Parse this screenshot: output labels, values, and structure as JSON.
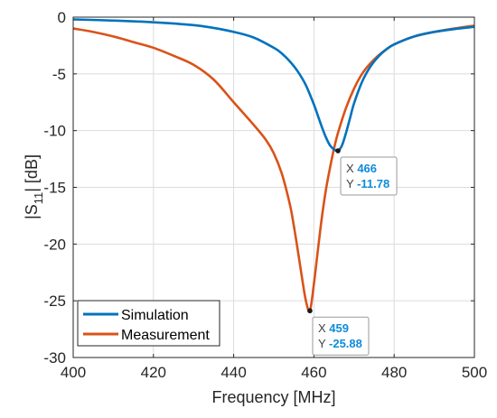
{
  "chart_data": {
    "type": "line",
    "xlabel": "Frequency [MHz]",
    "ylabel_main": "|S",
    "ylabel_sub": "11",
    "ylabel_tail": "| [dB]",
    "xlim": [
      400,
      500
    ],
    "ylim": [
      -30,
      0
    ],
    "xticks": [
      400,
      420,
      440,
      460,
      480,
      500
    ],
    "yticks": [
      0,
      -5,
      -10,
      -15,
      -20,
      -25,
      -30
    ],
    "grid": true,
    "legend_position": "bottom-left",
    "series": [
      {
        "name": "Simulation",
        "color": "#0072BD",
        "x": [
          400,
          410,
          420,
          430,
          435,
          440,
          445,
          450,
          452,
          454,
          456,
          458,
          460,
          461,
          462,
          463,
          464,
          465,
          466,
          467,
          468,
          469,
          470,
          472,
          474,
          476,
          478,
          480,
          485,
          490,
          495,
          500
        ],
        "y": [
          -0.2,
          -0.3,
          -0.45,
          -0.7,
          -0.95,
          -1.3,
          -1.8,
          -2.7,
          -3.2,
          -3.9,
          -4.8,
          -6.0,
          -7.7,
          -8.7,
          -9.7,
          -10.6,
          -11.3,
          -11.65,
          -11.78,
          -11.3,
          -10.2,
          -8.9,
          -7.6,
          -5.7,
          -4.4,
          -3.5,
          -2.85,
          -2.4,
          -1.7,
          -1.3,
          -1.05,
          -0.85
        ]
      },
      {
        "name": "Measurement",
        "color": "#D95319",
        "x": [
          400,
          405,
          410,
          415,
          420,
          425,
          430,
          435,
          440,
          445,
          448,
          450,
          452,
          454,
          455,
          456,
          457,
          458,
          459,
          460,
          461,
          462,
          463,
          464,
          465,
          466,
          468,
          470,
          472,
          474,
          476,
          478,
          480,
          485,
          490,
          495,
          500
        ],
        "y": [
          -1.0,
          -1.3,
          -1.7,
          -2.2,
          -2.7,
          -3.4,
          -4.2,
          -5.5,
          -7.5,
          -9.5,
          -10.8,
          -12.0,
          -13.8,
          -16.5,
          -18.4,
          -20.6,
          -22.9,
          -25.0,
          -25.88,
          -23.5,
          -20.5,
          -17.6,
          -15.2,
          -13.3,
          -11.6,
          -10.2,
          -8.0,
          -6.3,
          -5.0,
          -4.1,
          -3.4,
          -2.85,
          -2.4,
          -1.7,
          -1.3,
          -1.0,
          -0.75
        ]
      }
    ],
    "datatips": [
      {
        "x_label": "X",
        "x_value": "466",
        "y_label": "Y",
        "y_value": "-11.78",
        "x": 466,
        "y": -11.78,
        "side": "below-right"
      },
      {
        "x_label": "X",
        "x_value": "459",
        "y_label": "Y",
        "y_value": "-25.88",
        "x": 459,
        "y": -25.88,
        "side": "below-right"
      }
    ]
  }
}
